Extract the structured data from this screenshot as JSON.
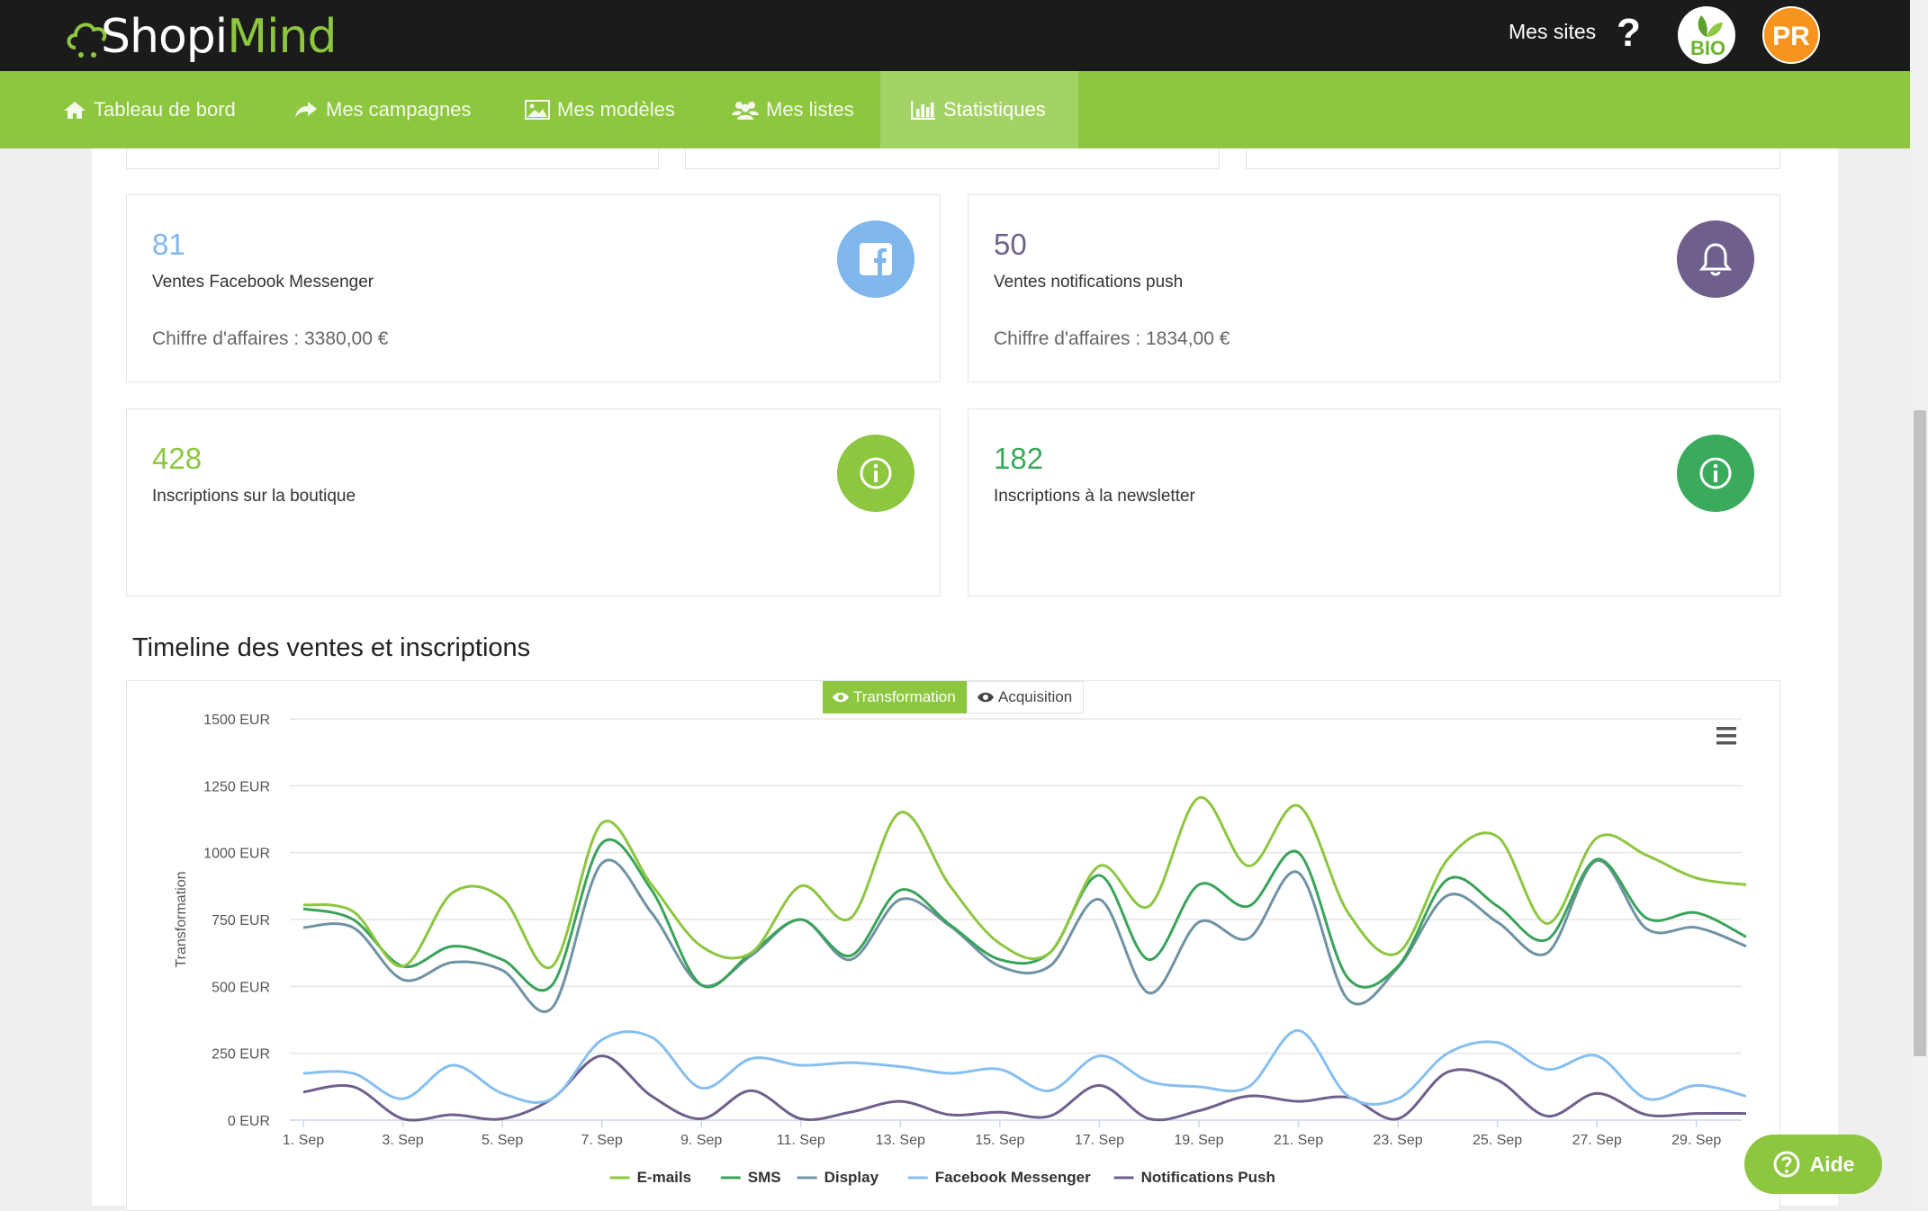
{
  "app": {
    "logo_shopi": "Shopi",
    "logo_mind": "Mind"
  },
  "header": {
    "mes_sites": "Mes sites",
    "help": "?",
    "bio_badge": "BIO",
    "user_initials": "PR"
  },
  "nav": {
    "items": [
      {
        "label": "Tableau de bord",
        "icon": "home-icon"
      },
      {
        "label": "Mes campagnes",
        "icon": "share-arrow-icon"
      },
      {
        "label": "Mes modèles",
        "icon": "image-icon"
      },
      {
        "label": "Mes listes",
        "icon": "users-icon"
      },
      {
        "label": "Statistiques",
        "icon": "bar-chart-icon",
        "active": true
      }
    ]
  },
  "cards": {
    "facebook": {
      "number": "81",
      "label": "Ventes Facebook Messenger",
      "sub": "Chiffre d'affaires : 3380,00 €",
      "icon": "facebook-icon",
      "color": "#7fb6ec"
    },
    "push": {
      "number": "50",
      "label": "Ventes notifications push",
      "sub": "Chiffre d'affaires : 1834,00 €",
      "icon": "bell-icon",
      "color": "#6f5f8c"
    },
    "boutique": {
      "number": "428",
      "label": "Inscriptions sur la boutique",
      "icon": "info-icon",
      "color": "#8dc63f"
    },
    "newsletter": {
      "number": "182",
      "label": "Inscriptions à la newsletter",
      "icon": "info-icon",
      "color": "#3aaa5c"
    }
  },
  "section": {
    "title": "Timeline des ventes et inscriptions"
  },
  "toggles": {
    "transformation": "Transformation",
    "acquisition": "Acquisition"
  },
  "aide": "Aide",
  "chart_data": {
    "type": "line",
    "ylabel": "Transformation",
    "ylim": [
      0,
      1500
    ],
    "y_ticks": [
      "0 EUR",
      "250 EUR",
      "500 EUR",
      "750 EUR",
      "1000 EUR",
      "1250 EUR",
      "1500 EUR"
    ],
    "x_ticks": [
      "1. Sep",
      "3. Sep",
      "5. Sep",
      "7. Sep",
      "9. Sep",
      "11. Sep",
      "13. Sep",
      "15. Sep",
      "17. Sep",
      "19. Sep",
      "21. Sep",
      "23. Sep",
      "25. Sep",
      "27. Sep",
      "29. Sep"
    ],
    "x": [
      "1. Sep",
      "2. Sep",
      "3. Sep",
      "4. Sep",
      "5. Sep",
      "6. Sep",
      "7. Sep",
      "8. Sep",
      "9. Sep",
      "10. Sep",
      "11. Sep",
      "12. Sep",
      "13. Sep",
      "14. Sep",
      "15. Sep",
      "16. Sep",
      "17. Sep",
      "18. Sep",
      "19. Sep",
      "20. Sep",
      "21. Sep",
      "22. Sep",
      "23. Sep",
      "24. Sep",
      "25. Sep",
      "26. Sep",
      "27. Sep",
      "28. Sep",
      "29. Sep",
      "30. Sep"
    ],
    "series": [
      {
        "name": "E-mails",
        "color": "#8dc63f",
        "values": [
          805,
          780,
          575,
          850,
          830,
          575,
          1110,
          880,
          650,
          625,
          875,
          755,
          1150,
          875,
          660,
          625,
          950,
          800,
          1205,
          950,
          1175,
          775,
          625,
          975,
          1060,
          735,
          1055,
          990,
          905,
          880
        ]
      },
      {
        "name": "SMS",
        "color": "#3aa35a",
        "values": [
          790,
          750,
          575,
          650,
          600,
          505,
          1035,
          860,
          505,
          625,
          750,
          615,
          860,
          730,
          600,
          625,
          915,
          600,
          880,
          800,
          1000,
          530,
          575,
          900,
          800,
          675,
          975,
          755,
          775,
          685
        ]
      },
      {
        "name": "Display",
        "color": "#6f93a3",
        "values": [
          720,
          720,
          525,
          590,
          560,
          420,
          960,
          775,
          505,
          615,
          750,
          600,
          825,
          725,
          575,
          575,
          825,
          475,
          740,
          680,
          925,
          450,
          570,
          840,
          740,
          625,
          970,
          715,
          720,
          650
        ]
      },
      {
        "name": "Facebook Messenger",
        "color": "#87bff0",
        "values": [
          175,
          175,
          80,
          205,
          100,
          80,
          300,
          310,
          120,
          230,
          205,
          215,
          200,
          175,
          190,
          110,
          240,
          145,
          125,
          125,
          335,
          90,
          80,
          250,
          290,
          190,
          240,
          80,
          130,
          90
        ]
      },
      {
        "name": "Notifications Push",
        "color": "#6f5f8c",
        "values": [
          105,
          125,
          5,
          20,
          5,
          80,
          240,
          90,
          5,
          110,
          5,
          30,
          70,
          20,
          30,
          15,
          130,
          5,
          35,
          90,
          70,
          85,
          5,
          180,
          150,
          15,
          100,
          20,
          25,
          25
        ]
      }
    ],
    "legend_position": "bottom",
    "grid": true
  }
}
